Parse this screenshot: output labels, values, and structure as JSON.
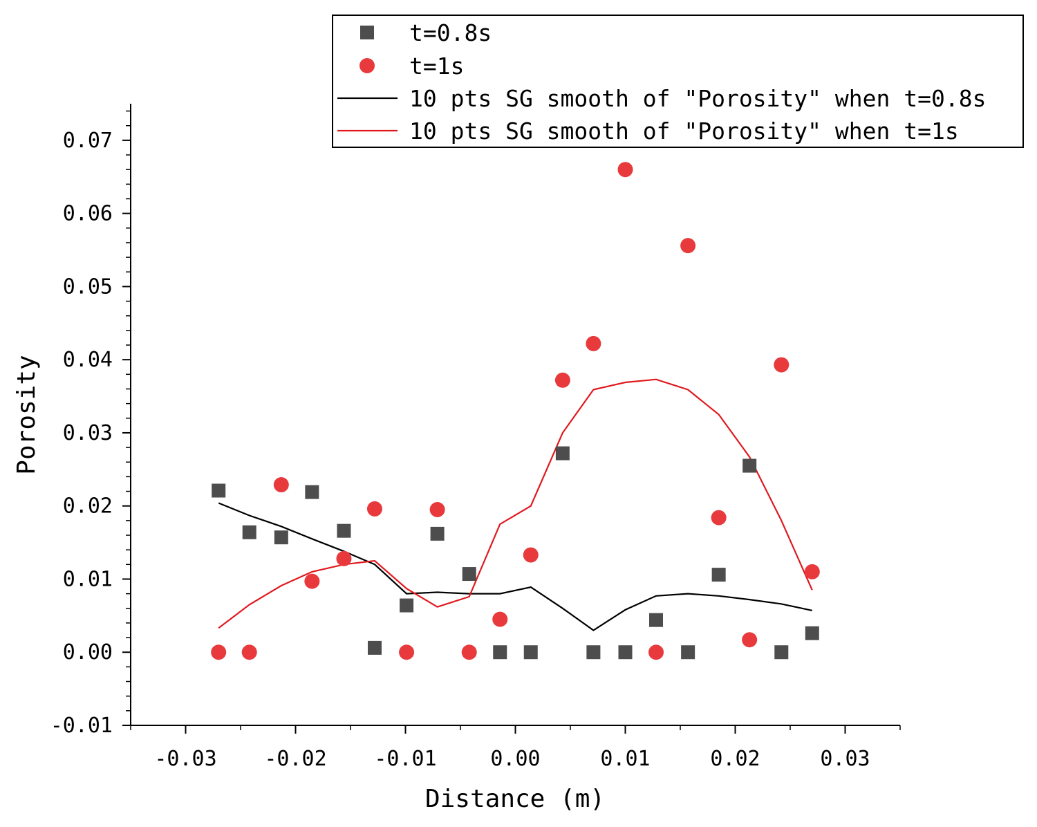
{
  "chart_data": {
    "type": "scatter",
    "title": "",
    "xlabel": "Distance (m)",
    "ylabel": "Porosity",
    "xlim": [
      -0.035,
      0.035
    ],
    "ylim": [
      -0.01,
      0.075
    ],
    "xticks": [
      -0.03,
      -0.02,
      -0.01,
      0.0,
      0.01,
      0.02,
      0.03
    ],
    "xtick_labels": [
      "-0.03",
      "-0.02",
      "-0.01",
      "0.00",
      "0.01",
      "0.02",
      "0.03"
    ],
    "yticks": [
      -0.01,
      0.0,
      0.01,
      0.02,
      0.03,
      0.04,
      0.05,
      0.06,
      0.07
    ],
    "ytick_labels": [
      "-0.01",
      "0.00",
      "0.01",
      "0.02",
      "0.03",
      "0.04",
      "0.05",
      "0.06",
      "0.07"
    ],
    "grid": false,
    "legend_position": "top-right",
    "series": [
      {
        "name": "t=0.8s",
        "kind": "scatter",
        "marker": "square",
        "color": "#4d4d4d",
        "x": [
          -0.027,
          -0.0242,
          -0.0213,
          -0.0185,
          -0.0156,
          -0.0128,
          -0.0099,
          -0.0071,
          -0.0042,
          -0.0014,
          0.0014,
          0.0043,
          0.0071,
          0.01,
          0.0128,
          0.0157,
          0.0185,
          0.0213,
          0.0242,
          0.027
        ],
        "y": [
          0.0221,
          0.0164,
          0.0157,
          0.0219,
          0.0166,
          0.0006,
          0.0064,
          0.0162,
          0.0107,
          0.0,
          0.0,
          0.0272,
          0.0,
          0.0,
          0.0044,
          0.0,
          0.0106,
          0.0255,
          0.0,
          0.0026
        ]
      },
      {
        "name": "t=1s",
        "kind": "scatter",
        "marker": "circle",
        "color": "#e8393c",
        "x": [
          -0.027,
          -0.0242,
          -0.0213,
          -0.0185,
          -0.0156,
          -0.0128,
          -0.0099,
          -0.0071,
          -0.0042,
          -0.0014,
          0.0014,
          0.0043,
          0.0071,
          0.01,
          0.0128,
          0.0157,
          0.0185,
          0.0213,
          0.0242,
          0.027
        ],
        "y": [
          0.0,
          0.0,
          0.0229,
          0.0097,
          0.0128,
          0.0196,
          0.0,
          0.0195,
          0.0,
          0.0045,
          0.0133,
          0.0372,
          0.0422,
          0.066,
          0.0,
          0.0556,
          0.0184,
          0.0017,
          0.0393,
          0.011
        ]
      },
      {
        "name": "10 pts SG smooth of \"Porosity\" when t=0.8s",
        "kind": "line",
        "color": "#000000",
        "x": [
          -0.027,
          -0.0242,
          -0.0213,
          -0.0185,
          -0.0156,
          -0.0128,
          -0.0099,
          -0.0071,
          -0.0042,
          -0.0014,
          0.0014,
          0.0043,
          0.0071,
          0.01,
          0.0128,
          0.0157,
          0.0185,
          0.0213,
          0.0242,
          0.027
        ],
        "y": [
          0.0204,
          0.0187,
          0.0172,
          0.0155,
          0.0138,
          0.012,
          0.008,
          0.0082,
          0.008,
          0.008,
          0.0089,
          0.006,
          0.003,
          0.0058,
          0.0077,
          0.008,
          0.0077,
          0.0072,
          0.0066,
          0.0057
        ]
      },
      {
        "name": "10 pts SG smooth of \"Porosity\" when t=1s",
        "kind": "line",
        "color": "#e0191e",
        "x": [
          -0.027,
          -0.0242,
          -0.0213,
          -0.0185,
          -0.0156,
          -0.0128,
          -0.0099,
          -0.0071,
          -0.0042,
          -0.0014,
          0.0014,
          0.0043,
          0.0071,
          0.01,
          0.0128,
          0.0157,
          0.0185,
          0.0213,
          0.0242,
          0.027
        ],
        "y": [
          0.0033,
          0.0065,
          0.0091,
          0.011,
          0.012,
          0.0125,
          0.0087,
          0.0062,
          0.0076,
          0.0175,
          0.02,
          0.03,
          0.0359,
          0.0369,
          0.0373,
          0.0359,
          0.0325,
          0.0267,
          0.018,
          0.0085
        ]
      }
    ]
  }
}
